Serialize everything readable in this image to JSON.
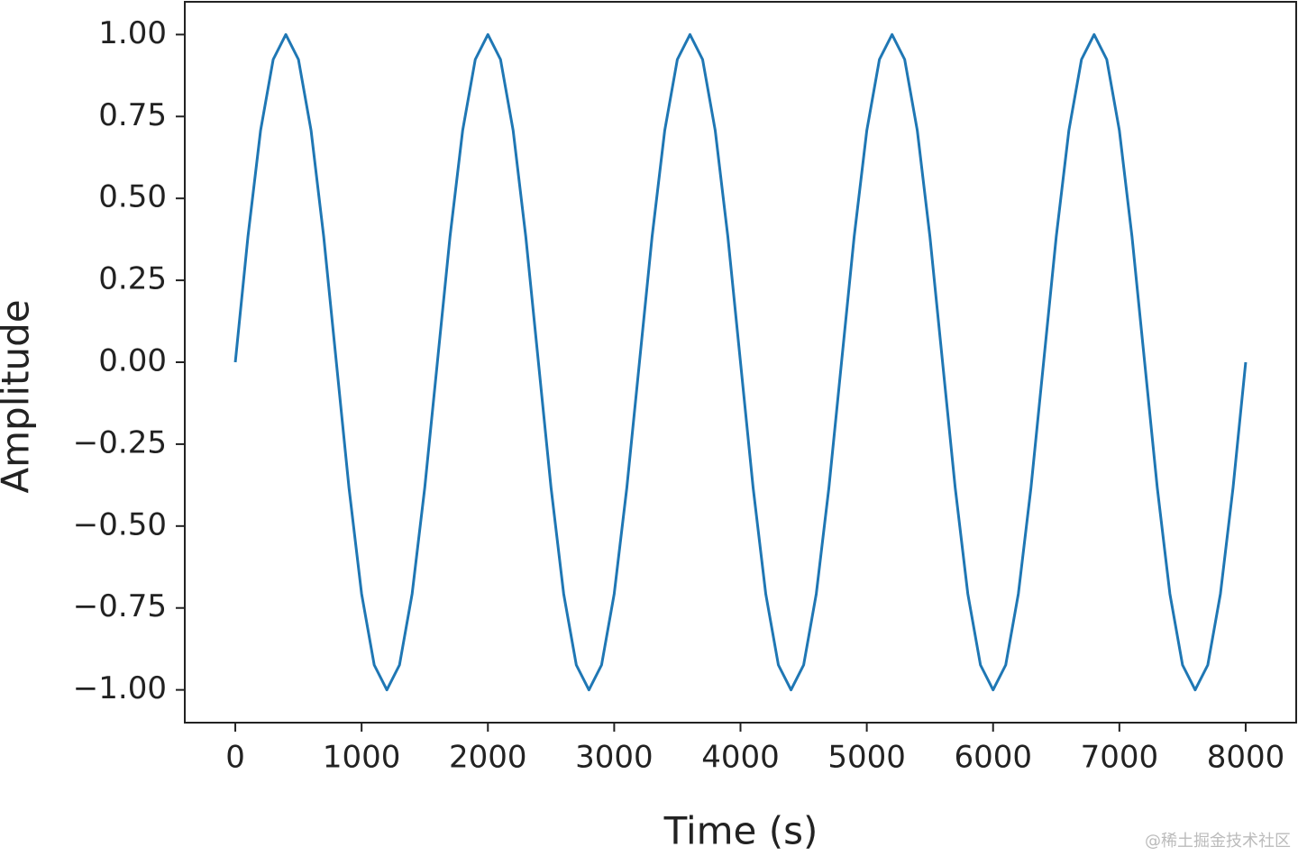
{
  "chart_data": {
    "type": "line",
    "xlabel": "Time (s)",
    "ylabel": "Amplitude",
    "x": [
      0,
      100,
      200,
      300,
      400,
      500,
      600,
      700,
      800,
      900,
      1000,
      1100,
      1200,
      1300,
      1400,
      1500,
      1600,
      1700,
      1800,
      1900,
      2000,
      2100,
      2200,
      2300,
      2400,
      2500,
      2600,
      2700,
      2800,
      2900,
      3000,
      3100,
      3200,
      3300,
      3400,
      3500,
      3600,
      3700,
      3800,
      3900,
      4000,
      4100,
      4200,
      4300,
      4400,
      4500,
      4600,
      4700,
      4800,
      4900,
      5000,
      5100,
      5200,
      5300,
      5400,
      5500,
      5600,
      5700,
      5800,
      5900,
      6000,
      6100,
      6200,
      6300,
      6400,
      6500,
      6600,
      6700,
      6800,
      6900,
      7000,
      7100,
      7200,
      7300,
      7400,
      7500,
      7600,
      7700,
      7800,
      7900,
      8000
    ],
    "values": [
      0,
      0.383,
      0.707,
      0.924,
      1,
      0.924,
      0.707,
      0.383,
      0,
      -0.383,
      -0.707,
      -0.924,
      -1,
      -0.924,
      -0.707,
      -0.383,
      0,
      0.383,
      0.707,
      0.924,
      1,
      0.924,
      0.707,
      0.383,
      0,
      -0.383,
      -0.707,
      -0.924,
      -1,
      -0.924,
      -0.707,
      -0.383,
      0,
      0.383,
      0.707,
      0.924,
      1,
      0.924,
      0.707,
      0.383,
      0,
      -0.383,
      -0.707,
      -0.924,
      -1,
      -0.924,
      -0.707,
      -0.383,
      0,
      0.383,
      0.707,
      0.924,
      1,
      0.924,
      0.707,
      0.383,
      0,
      -0.383,
      -0.707,
      -0.924,
      -1,
      -0.924,
      -0.707,
      -0.383,
      0,
      0.383,
      0.707,
      0.924,
      1,
      0.924,
      0.707,
      0.383,
      0,
      -0.383,
      -0.707,
      -0.924,
      -1,
      -0.924,
      -0.707,
      -0.383,
      0
    ],
    "color": "#1f77b4",
    "xlim": [
      -400,
      8400
    ],
    "xticks": [
      0,
      1000,
      2000,
      3000,
      4000,
      5000,
      6000,
      7000,
      8000
    ],
    "ylim": [
      -1.1,
      1.1
    ],
    "yticks": [
      {
        "value": -1,
        "label": "−1.00"
      },
      {
        "value": -0.75,
        "label": "−0.75"
      },
      {
        "value": -0.5,
        "label": "−0.50"
      },
      {
        "value": -0.25,
        "label": "−0.25"
      },
      {
        "value": 0,
        "label": "0.00"
      },
      0.25,
      {
        "value": 0.5,
        "label": "0.50"
      },
      0.75,
      {
        "value": 1,
        "label": "1.00"
      }
    ],
    "watermark": "@稀土掘金技术社区"
  }
}
